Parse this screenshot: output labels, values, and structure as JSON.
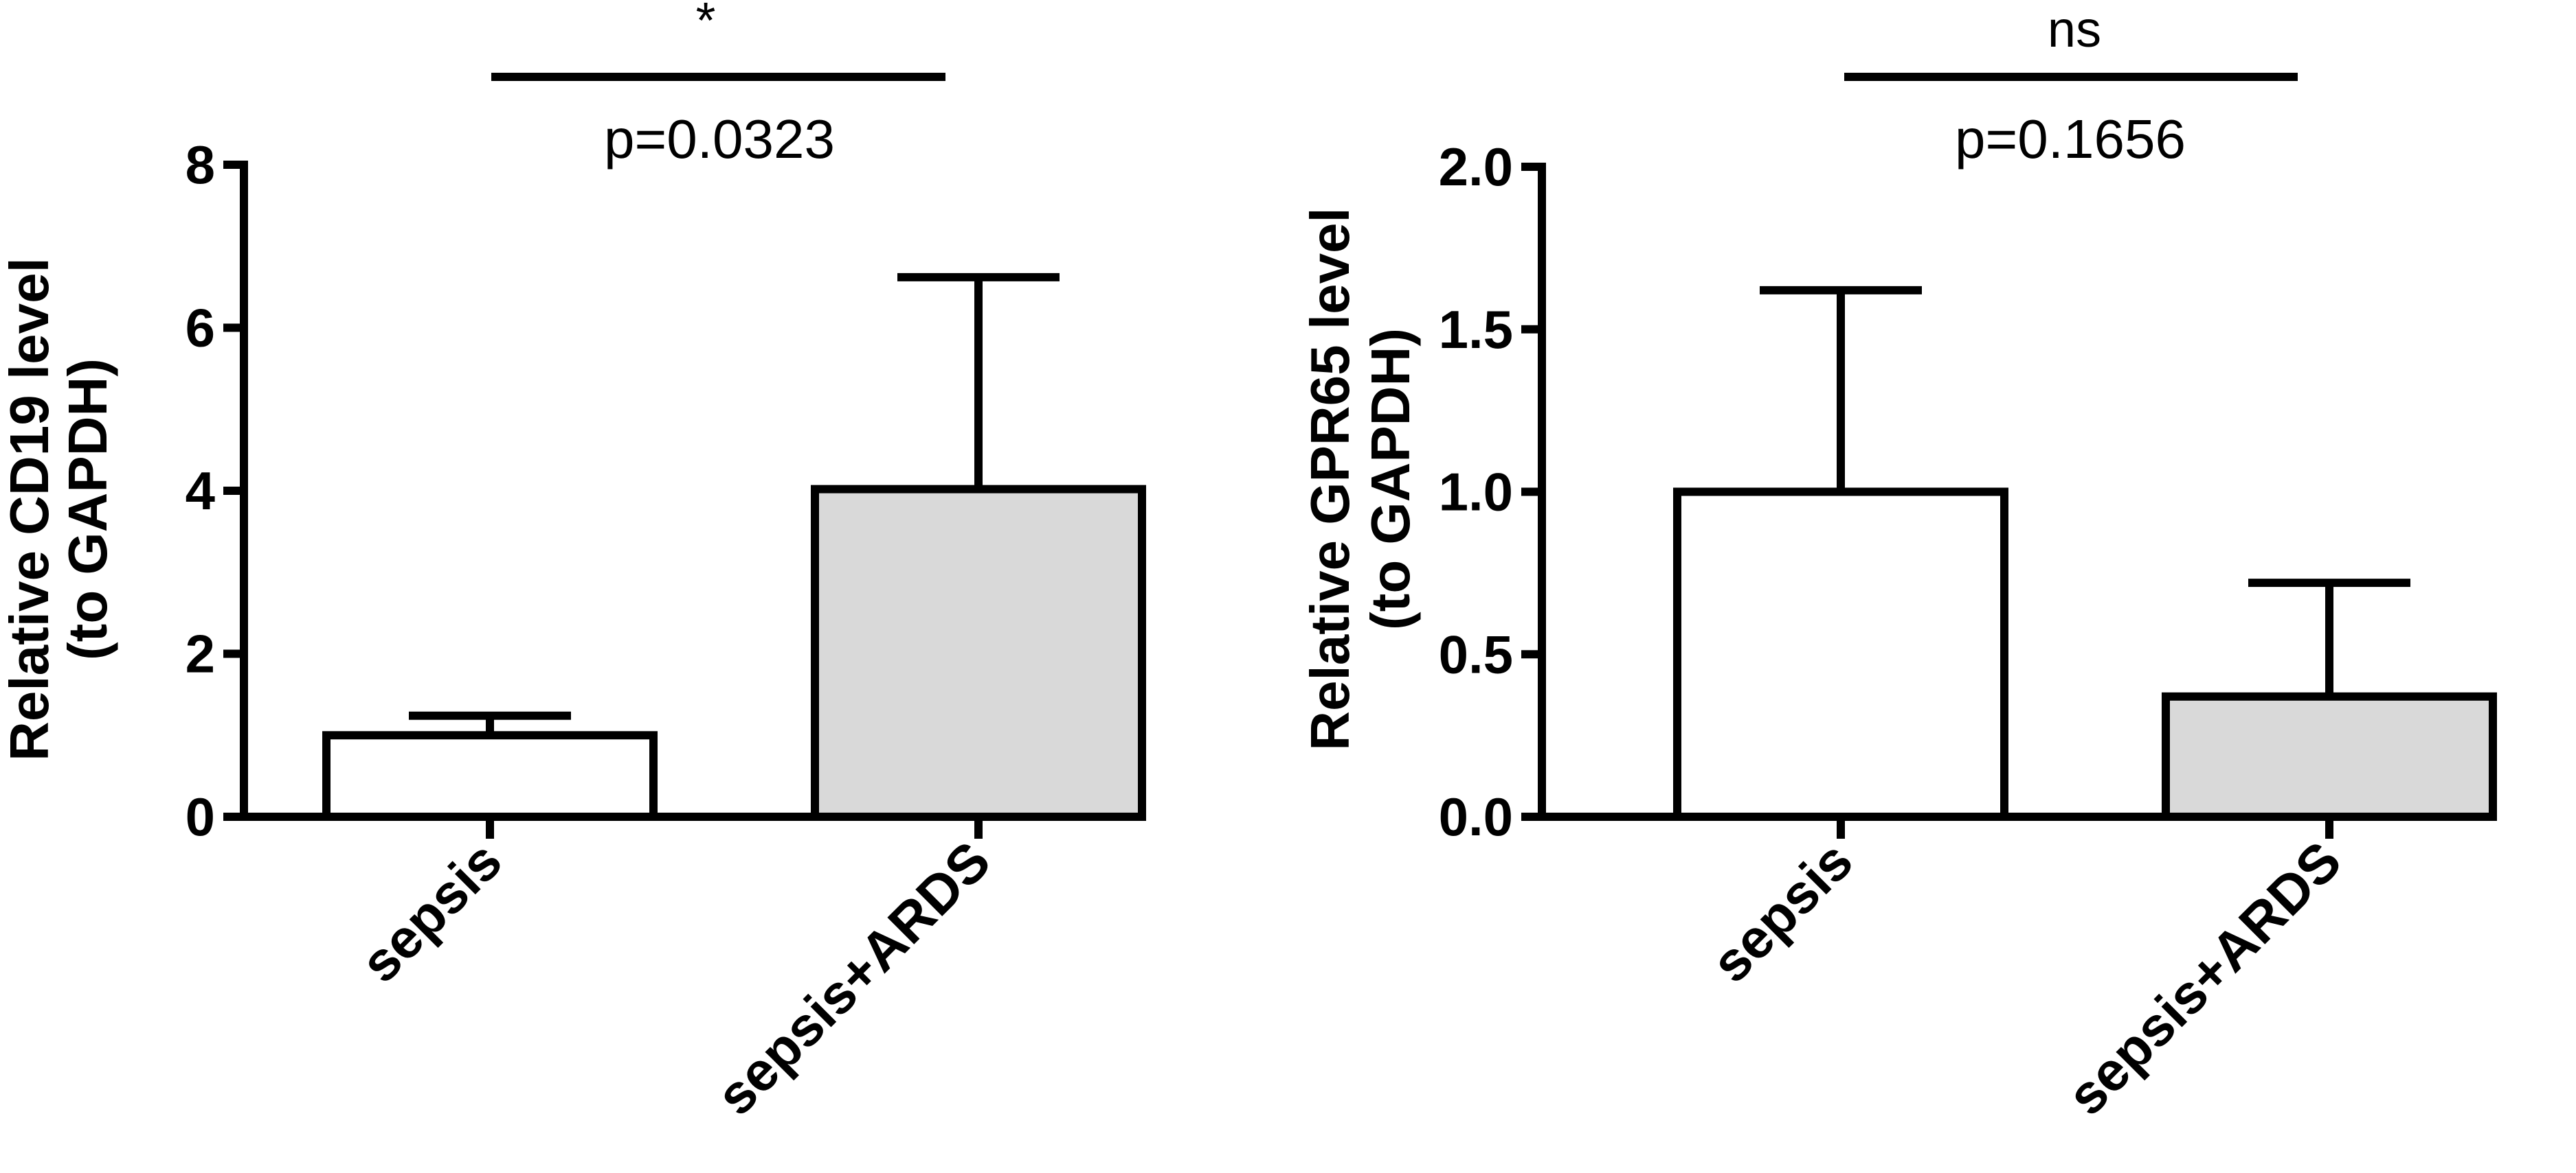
{
  "chart_data": [
    {
      "type": "bar",
      "categories": [
        "sepsis",
        "sepsis+ARDS"
      ],
      "values": [
        1.0,
        4.02
      ],
      "error_upper": [
        0.24,
        2.6
      ],
      "ylabel_line1": "Relative CD19 level",
      "ylabel_line2": "(to GAPDH)",
      "ylim": [
        0,
        8
      ],
      "yticks": [
        "0",
        "2",
        "4",
        "6",
        "8"
      ],
      "bar_colors": [
        "#ffffff",
        "#d9d9d9"
      ],
      "significance": {
        "marker": "*",
        "p_text": "p=0.0323"
      }
    },
    {
      "type": "bar",
      "categories": [
        "sepsis",
        "sepsis+ARDS"
      ],
      "values": [
        1.0,
        0.37
      ],
      "error_upper": [
        0.62,
        0.35
      ],
      "ylabel_line1": "Relative GPR65 level",
      "ylabel_line2": "(to GAPDH)",
      "ylim": [
        0,
        2.0
      ],
      "yticks": [
        "0.0",
        "0.5",
        "1.0",
        "1.5",
        "2.0"
      ],
      "bar_colors": [
        "#ffffff",
        "#d9d9d9"
      ],
      "significance": {
        "marker": "ns",
        "p_text": "p=0.1656"
      }
    }
  ]
}
